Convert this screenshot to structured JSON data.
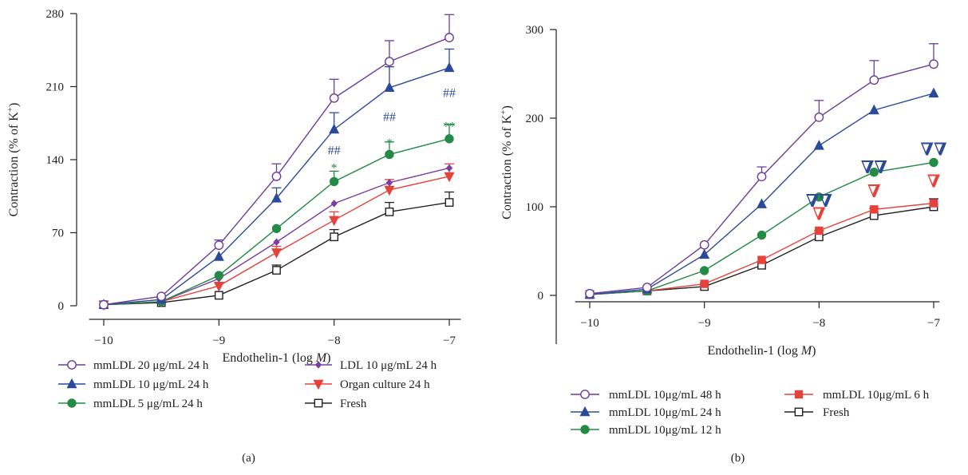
{
  "chart_data": [
    {
      "type": "line",
      "panel_label": "(a)",
      "title": "",
      "xlabel_text": "Endothelin-1 (log ",
      "xlabel_unit": "M",
      "xlabel_close": ")",
      "ylabel_text": "Contraction (% of K",
      "ylabel_sup": "+",
      "ylabel_close": ")",
      "xlim": [
        -10.1,
        -6.9
      ],
      "ylim": [
        0,
        280
      ],
      "xticks": [
        -10,
        -9,
        -8,
        -7
      ],
      "xtick_labels": [
        "−10",
        "−9",
        "−8",
        "−7"
      ],
      "yticks": [
        0,
        70,
        140,
        210,
        280
      ],
      "ytick_labels": [
        "0",
        "70",
        "140",
        "210",
        "280"
      ],
      "grid": false,
      "legend_position": "bottom",
      "x": [
        -10,
        -9.5,
        -9,
        -8.5,
        -8,
        -7.52,
        -7
      ],
      "series": [
        {
          "name": "mmLDL 20 μg/mL 24 h",
          "color": "#6a3d9a",
          "marker": "circle-open",
          "values": [
            1,
            9,
            58,
            124,
            199,
            234,
            257
          ],
          "errors": [
            0,
            0,
            5,
            12,
            18,
            20,
            22
          ]
        },
        {
          "name": "mmLDL 10 μg/mL 24 h",
          "color": "#2b4a9c",
          "marker": "triangle-up",
          "values": [
            1,
            6,
            47,
            103,
            169,
            209,
            228
          ],
          "errors": [
            0,
            0,
            0,
            10,
            16,
            20,
            18
          ]
        },
        {
          "name": "mmLDL 5 μg/mL 24 h",
          "color": "#238b45",
          "marker": "circle",
          "values": [
            1,
            4,
            29,
            74,
            119,
            145,
            160
          ],
          "errors": [
            0,
            0,
            0,
            0,
            10,
            12,
            14
          ]
        },
        {
          "name": "LDL 10 μg/mL 24 h",
          "color": "#7b3fa0",
          "marker": "diamond",
          "values": [
            1,
            4,
            26,
            61,
            98,
            118,
            132
          ],
          "errors": [
            0,
            0,
            0,
            0,
            0,
            0,
            0
          ]
        },
        {
          "name": "Organ culture 24 h",
          "color": "#e8413a",
          "marker": "triangle-down",
          "values": [
            1,
            4,
            19,
            51,
            82,
            111,
            124
          ],
          "errors": [
            0,
            0,
            0,
            6,
            8,
            10,
            12
          ]
        },
        {
          "name": "Fresh",
          "color": "#222222",
          "marker": "square-open",
          "values": [
            1,
            3,
            10,
            34,
            66,
            90,
            99
          ],
          "errors": [
            0,
            0,
            0,
            5,
            7,
            9,
            10
          ]
        }
      ],
      "annotations": [
        {
          "x": -8,
          "y": 145,
          "text": "##",
          "color": "#2b4a9c"
        },
        {
          "x": -7.52,
          "y": 177,
          "text": "##",
          "color": "#2b4a9c"
        },
        {
          "x": -7,
          "y": 200,
          "text": "##",
          "color": "#2b4a9c"
        },
        {
          "x": -8,
          "y": 128,
          "text": "*",
          "color": "#238b45"
        },
        {
          "x": -7.52,
          "y": 152,
          "text": "*",
          "color": "#238b45"
        },
        {
          "x": -7,
          "y": 168,
          "text": "**",
          "color": "#238b45"
        }
      ],
      "legend_layout": [
        [
          0,
          3
        ],
        [
          1,
          4
        ],
        [
          2,
          5
        ]
      ]
    },
    {
      "type": "line",
      "panel_label": "(b)",
      "title": "",
      "xlabel_text": "Endothelin-1 (log ",
      "xlabel_unit": "M",
      "xlabel_close": ")",
      "ylabel_text": "Contraction (% of K",
      "ylabel_sup": "+",
      "ylabel_close": ")",
      "xlim": [
        -10.1,
        -6.95
      ],
      "ylim": [
        -55,
        300
      ],
      "xticks": [
        -10,
        -9,
        -8,
        -7
      ],
      "xtick_labels": [
        "−10",
        "−9",
        "−8",
        "−7"
      ],
      "yticks": [
        0,
        100,
        200,
        300
      ],
      "ytick_labels": [
        "0",
        "100",
        "200",
        "300"
      ],
      "grid": false,
      "legend_position": "bottom",
      "x": [
        -10,
        -9.5,
        -9,
        -8.5,
        -8,
        -7.52,
        -7
      ],
      "series": [
        {
          "name": "mmLDL 10μg/mL 48 h",
          "color": "#6a3d9a",
          "marker": "circle-open",
          "values": [
            2,
            9,
            57,
            134,
            201,
            243,
            261
          ],
          "errors": [
            0,
            0,
            0,
            11,
            19,
            22,
            23
          ]
        },
        {
          "name": "mmLDL 10μg/mL 24 h",
          "color": "#2b4a9c",
          "marker": "triangle-up",
          "values": [
            1,
            7,
            46,
            103,
            169,
            209,
            228
          ],
          "errors": [
            0,
            0,
            0,
            0,
            0,
            0,
            0
          ]
        },
        {
          "name": "mmLDL 10μg/mL 12 h",
          "color": "#238b45",
          "marker": "circle",
          "values": [
            1,
            5,
            28,
            68,
            111,
            139,
            150
          ],
          "errors": [
            0,
            0,
            0,
            0,
            0,
            0,
            0
          ]
        },
        {
          "name": "mmLDL 10μg/mL 6 h",
          "color": "#e8413a",
          "marker": "square-filled",
          "values": [
            1,
            5,
            13,
            40,
            73,
            97,
            104
          ],
          "errors": [
            0,
            0,
            0,
            0,
            0,
            0,
            0
          ]
        },
        {
          "name": "Fresh",
          "color": "#222222",
          "marker": "square-open",
          "values": [
            1,
            5,
            10,
            34,
            66,
            90,
            100
          ],
          "errors": [
            0,
            0,
            0,
            4,
            7,
            8,
            9
          ]
        }
      ],
      "annotation_markers": [
        {
          "x": -8,
          "y": 100,
          "glyph": "∇∇",
          "color": "#2b4a9c"
        },
        {
          "x": -7.52,
          "y": 138,
          "glyph": "∇∇",
          "color": "#2b4a9c"
        },
        {
          "x": -7,
          "y": 158,
          "glyph": "∇∇",
          "color": "#2b4a9c"
        },
        {
          "x": -8,
          "y": 85,
          "glyph": "∇",
          "color": "#e8413a"
        },
        {
          "x": -7.52,
          "y": 111,
          "glyph": "∇",
          "color": "#e8413a"
        },
        {
          "x": -7,
          "y": 122,
          "glyph": "∇",
          "color": "#e8413a"
        }
      ],
      "legend_layout": [
        [
          0,
          3
        ],
        [
          1,
          4
        ],
        [
          2,
          null
        ]
      ]
    }
  ]
}
